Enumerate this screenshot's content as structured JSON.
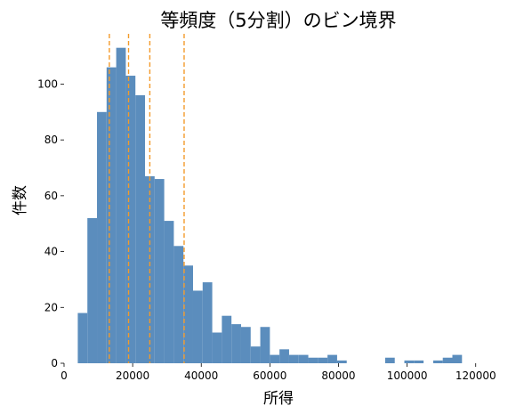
{
  "chart_data": {
    "type": "bar",
    "title": "等頻度（5分割）のビン境界",
    "xlabel": "所得",
    "ylabel": "件数",
    "xlim": [
      0,
      125000
    ],
    "ylim": [
      0,
      118
    ],
    "x_ticks": [
      0,
      20000,
      40000,
      60000,
      80000,
      100000,
      120000
    ],
    "y_ticks": [
      0,
      20,
      40,
      60,
      80,
      100
    ],
    "x_tick_labels": [
      "0",
      "20000",
      "40000",
      "60000",
      "80000",
      "100000",
      "120000"
    ],
    "y_tick_labels": [
      "0",
      "20",
      "40",
      "60",
      "80",
      "100"
    ],
    "grid": false,
    "bar_color": "#5b8dbd",
    "boundary_color": "#f39a2a",
    "bin_edges": [
      4000,
      6800,
      9600,
      12400,
      15200,
      18000,
      20800,
      23600,
      26400,
      29200,
      32000,
      34800,
      37600,
      40400,
      43200,
      46000,
      48800,
      51600,
      54400,
      57200,
      60000,
      62800,
      65600,
      68400,
      71200,
      74000,
      76800,
      79600,
      82400,
      85200,
      88000,
      90800,
      93600,
      96400,
      99200,
      102000,
      104800,
      107600,
      110400,
      113200,
      116000,
      118800
    ],
    "counts": [
      18,
      52,
      90,
      106,
      113,
      103,
      96,
      67,
      66,
      51,
      42,
      35,
      26,
      29,
      11,
      17,
      14,
      13,
      6,
      13,
      3,
      5,
      3,
      3,
      2,
      2,
      3,
      1,
      0,
      0,
      0,
      0,
      2,
      0,
      1,
      1,
      0,
      1,
      2,
      3,
      0
    ],
    "boundaries": [
      13200,
      18800,
      25000,
      35000
    ]
  }
}
